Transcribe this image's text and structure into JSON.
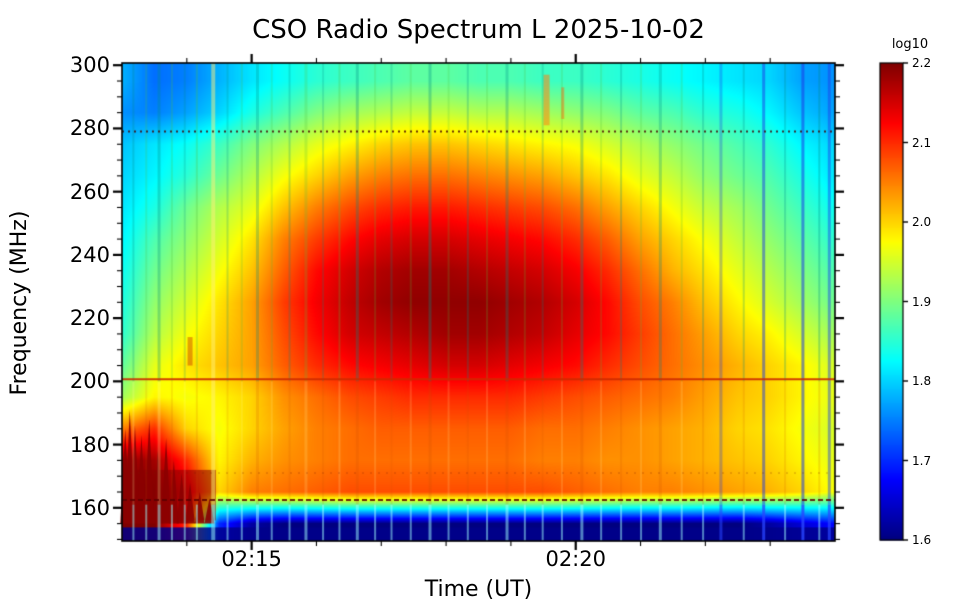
{
  "figure": {
    "title": "CSO Radio Spectrum L 2025-10-02",
    "xlabel": "Time (UT)",
    "ylabel": "Frequency (MHz)"
  },
  "axes": {
    "x_tick_labels": [
      "02:15",
      "02:20"
    ],
    "x_tick_minutes": [
      2,
      7
    ],
    "x_minor_minutes": [
      1,
      2,
      3,
      4,
      5,
      6,
      7,
      8,
      9,
      10
    ],
    "y_tick_labels": [
      "300",
      "280",
      "260",
      "240",
      "220",
      "200",
      "180",
      "160"
    ],
    "y_tick_values": [
      300,
      280,
      260,
      240,
      220,
      200,
      180,
      160
    ],
    "y_minor_step": 5,
    "y_range_mhz": [
      149.5,
      300.7
    ],
    "x_range_minutes": [
      0,
      11
    ]
  },
  "colorbar": {
    "title": "log10",
    "tick_labels": [
      "2.2",
      "2.1",
      "2.0",
      "1.9",
      "1.8",
      "1.7",
      "1.6"
    ],
    "tick_values": [
      2.2,
      2.1,
      2.0,
      1.9,
      1.8,
      1.7,
      1.6
    ],
    "vmin": 1.6,
    "vmax": 2.2,
    "colormap": "jet"
  },
  "chart_data": {
    "type": "heatmap",
    "title": "CSO Radio Spectrum L 2025-10-02",
    "xlabel": "Time (UT)",
    "ylabel": "Frequency (MHz)",
    "x_axis": {
      "start": "02:13",
      "end": "02:24",
      "major_ticks": [
        "02:15",
        "02:20"
      ],
      "minor_interval_minutes": 1
    },
    "y_axis": {
      "range_mhz": [
        149.5,
        300.7
      ],
      "major_tick_step": 20,
      "minor_tick_step": 5
    },
    "z": {
      "label": "log10",
      "range": [
        1.6,
        2.2
      ],
      "colormap": "jet"
    },
    "grid": {
      "time_minutes_after_0213": [
        0,
        0.5,
        1,
        1.5,
        2,
        2.5,
        3,
        3.5,
        4,
        4.5,
        5,
        5.5,
        6,
        6.5,
        7,
        7.5,
        8,
        8.5,
        9,
        9.5,
        10,
        10.5,
        11
      ],
      "freq_mhz": [
        155,
        165,
        175,
        185,
        195,
        205,
        215,
        225,
        235,
        245,
        255,
        265,
        275,
        285,
        295
      ],
      "log10_values": [
        [
          2.2,
          2.2,
          2.1,
          1.7,
          1.62,
          1.6,
          1.6,
          1.6,
          1.6,
          1.6,
          1.6,
          1.6,
          1.6,
          1.6,
          1.6,
          1.6,
          1.6,
          1.6,
          1.6,
          1.6,
          1.62,
          1.65,
          1.68
        ],
        [
          2.2,
          2.2,
          2.15,
          2.0,
          2.05,
          2.06,
          2.07,
          2.08,
          2.08,
          2.08,
          2.08,
          2.08,
          2.08,
          2.08,
          2.07,
          2.06,
          2.05,
          2.05,
          2.04,
          2.03,
          2.02,
          2.0,
          1.97
        ],
        [
          2.18,
          2.18,
          2.1,
          1.98,
          2.02,
          2.04,
          2.05,
          2.06,
          2.06,
          2.06,
          2.06,
          2.06,
          2.06,
          2.05,
          2.05,
          2.04,
          2.04,
          2.03,
          2.02,
          2.01,
          2.0,
          1.98,
          1.96
        ],
        [
          2.05,
          2.1,
          2.0,
          1.97,
          2.0,
          2.03,
          2.05,
          2.06,
          2.07,
          2.07,
          2.07,
          2.07,
          2.07,
          2.06,
          2.06,
          2.05,
          2.04,
          2.03,
          2.02,
          2.0,
          1.99,
          1.97,
          1.95
        ],
        [
          1.92,
          1.98,
          1.97,
          1.98,
          2.0,
          2.04,
          2.06,
          2.08,
          2.09,
          2.1,
          2.1,
          2.1,
          2.1,
          2.09,
          2.08,
          2.07,
          2.06,
          2.05,
          2.03,
          2.01,
          2.0,
          1.98,
          1.96
        ],
        [
          1.88,
          1.96,
          1.99,
          2.01,
          2.03,
          2.07,
          2.1,
          2.12,
          2.13,
          2.14,
          2.15,
          2.15,
          2.14,
          2.13,
          2.12,
          2.1,
          2.08,
          2.06,
          2.04,
          2.02,
          2.0,
          1.98,
          1.95
        ],
        [
          1.85,
          1.93,
          1.97,
          2.0,
          2.03,
          2.08,
          2.12,
          2.15,
          2.16,
          2.17,
          2.18,
          2.18,
          2.17,
          2.16,
          2.14,
          2.12,
          2.09,
          2.06,
          2.03,
          2.0,
          1.98,
          1.95,
          1.92
        ],
        [
          1.84,
          1.91,
          1.95,
          1.99,
          2.03,
          2.09,
          2.13,
          2.16,
          2.18,
          2.19,
          2.19,
          2.19,
          2.18,
          2.17,
          2.15,
          2.12,
          2.08,
          2.05,
          2.01,
          1.98,
          1.95,
          1.92,
          1.89
        ],
        [
          1.83,
          1.89,
          1.93,
          1.97,
          2.01,
          2.07,
          2.12,
          2.15,
          2.17,
          2.18,
          2.18,
          2.17,
          2.16,
          2.15,
          2.13,
          2.1,
          2.06,
          2.02,
          1.99,
          1.96,
          1.93,
          1.9,
          1.87
        ],
        [
          1.82,
          1.87,
          1.91,
          1.95,
          1.99,
          2.05,
          2.09,
          2.12,
          2.14,
          2.15,
          2.15,
          2.14,
          2.13,
          2.12,
          2.1,
          2.07,
          2.03,
          2.0,
          1.97,
          1.94,
          1.91,
          1.88,
          1.85
        ],
        [
          1.81,
          1.84,
          1.89,
          1.93,
          1.96,
          2.01,
          2.05,
          2.08,
          2.1,
          2.11,
          2.11,
          2.1,
          2.09,
          2.08,
          2.06,
          2.03,
          2.0,
          1.97,
          1.94,
          1.92,
          1.89,
          1.86,
          1.83
        ],
        [
          1.8,
          1.82,
          1.85,
          1.89,
          1.93,
          1.97,
          2.0,
          2.03,
          2.05,
          2.06,
          2.06,
          2.05,
          2.04,
          2.03,
          2.01,
          1.99,
          1.96,
          1.94,
          1.91,
          1.89,
          1.87,
          1.84,
          1.81
        ],
        [
          1.79,
          1.81,
          1.83,
          1.86,
          1.9,
          1.93,
          1.96,
          1.98,
          2.0,
          2.01,
          2.01,
          2.0,
          1.99,
          1.98,
          1.97,
          1.95,
          1.93,
          1.91,
          1.89,
          1.87,
          1.85,
          1.82,
          1.8
        ],
        [
          1.76,
          1.75,
          1.77,
          1.8,
          1.84,
          1.87,
          1.9,
          1.92,
          1.93,
          1.94,
          1.94,
          1.93,
          1.93,
          1.92,
          1.91,
          1.9,
          1.88,
          1.87,
          1.85,
          1.84,
          1.82,
          1.79,
          1.77
        ],
        [
          1.78,
          1.74,
          1.75,
          1.78,
          1.81,
          1.83,
          1.85,
          1.86,
          1.87,
          1.88,
          1.88,
          1.87,
          1.87,
          1.86,
          1.86,
          1.85,
          1.84,
          1.83,
          1.82,
          1.81,
          1.8,
          1.77,
          1.76
        ]
      ]
    },
    "features": {
      "red_line": {
        "freq_mhz": 200.7,
        "color": "#cc2a00",
        "width": 2,
        "alpha": 0.9
      },
      "dashed_lines": [
        {
          "freq_mhz": 279,
          "dash": [
            2,
            4
          ],
          "color": "rgba(70,0,0,0.8)",
          "width": 2
        },
        {
          "freq_mhz": 162.5,
          "dash": [
            5,
            3
          ],
          "color": "rgba(90,0,0,0.85)",
          "width": 2
        },
        {
          "freq_mhz": 171,
          "dash": [
            2,
            6
          ],
          "color": "rgba(120,30,0,0.35)",
          "width": 1
        }
      ],
      "bottom_band": {
        "below_mhz": 153.8,
        "color": "#00008b",
        "alpha": 0.85
      },
      "burst_blob": {
        "time_range": [
          "02:13:00",
          "02:14:30"
        ],
        "freq_range_mhz": [
          155,
          192
        ],
        "spikes": [
          [
            0.05,
            185
          ],
          [
            0.12,
            191
          ],
          [
            0.2,
            186
          ],
          [
            0.3,
            183
          ],
          [
            0.42,
            188
          ],
          [
            0.55,
            178
          ],
          [
            0.68,
            182
          ],
          [
            0.8,
            175
          ],
          [
            0.92,
            171
          ],
          [
            1.05,
            168
          ],
          [
            1.2,
            165
          ],
          [
            1.35,
            163
          ]
        ]
      },
      "hot_streaks": [
        {
          "t": 6.55,
          "f0": 281,
          "f1": 297,
          "color": "rgba(255,130,20,0.55)",
          "w": 6
        },
        {
          "t": 6.8,
          "f0": 283,
          "f1": 293,
          "color": "rgba(255,100,10,0.45)",
          "w": 3
        },
        {
          "t": 1.05,
          "f0": 205,
          "f1": 214,
          "color": "rgba(190,30,0,0.4)",
          "w": 5
        }
      ],
      "rfi_stripes": [
        [
          0.016,
          2,
          "t",
          0.25
        ],
        [
          0.034,
          2,
          "g",
          0.2
        ],
        [
          0.052,
          3,
          "t",
          0.3
        ],
        [
          0.07,
          2,
          "g",
          0.22
        ],
        [
          0.088,
          2,
          "t",
          0.2
        ],
        [
          0.105,
          2,
          "g",
          0.25
        ],
        [
          0.128,
          4,
          "y",
          0.5
        ],
        [
          0.148,
          2,
          "t",
          0.22
        ],
        [
          0.168,
          2,
          "g",
          0.2
        ],
        [
          0.19,
          3,
          "t",
          0.28
        ],
        [
          0.21,
          2,
          "g",
          0.2
        ],
        [
          0.235,
          2,
          "t",
          0.25
        ],
        [
          0.258,
          3,
          "g",
          0.22
        ],
        [
          0.282,
          2,
          "t",
          0.2
        ],
        [
          0.305,
          2,
          "g",
          0.25
        ],
        [
          0.33,
          3,
          "t",
          0.3
        ],
        [
          0.355,
          2,
          "g",
          0.2
        ],
        [
          0.378,
          2,
          "t",
          0.22
        ],
        [
          0.405,
          2,
          "g",
          0.2
        ],
        [
          0.432,
          3,
          "t",
          0.32
        ],
        [
          0.458,
          2,
          "g",
          0.2
        ],
        [
          0.485,
          2,
          "t",
          0.25
        ],
        [
          0.512,
          2,
          "g",
          0.2
        ],
        [
          0.54,
          3,
          "t",
          0.28
        ],
        [
          0.565,
          2,
          "g",
          0.2
        ],
        [
          0.59,
          2,
          "t",
          0.22
        ],
        [
          0.617,
          2,
          "g",
          0.2
        ],
        [
          0.645,
          3,
          "t",
          0.3
        ],
        [
          0.672,
          2,
          "g",
          0.2
        ],
        [
          0.7,
          2,
          "t",
          0.25
        ],
        [
          0.728,
          2,
          "g",
          0.2
        ],
        [
          0.755,
          3,
          "t",
          0.28
        ],
        [
          0.785,
          2,
          "g",
          0.22
        ],
        [
          0.815,
          2,
          "t",
          0.25
        ],
        [
          0.84,
          3,
          "b",
          0.3
        ],
        [
          0.872,
          2,
          "t",
          0.25
        ],
        [
          0.9,
          3,
          "b",
          0.5
        ],
        [
          0.93,
          2,
          "t",
          0.25
        ],
        [
          0.955,
          3,
          "b",
          0.55
        ],
        [
          0.978,
          2,
          "t",
          0.3
        ],
        [
          0.992,
          3,
          "b",
          0.45
        ]
      ]
    }
  }
}
